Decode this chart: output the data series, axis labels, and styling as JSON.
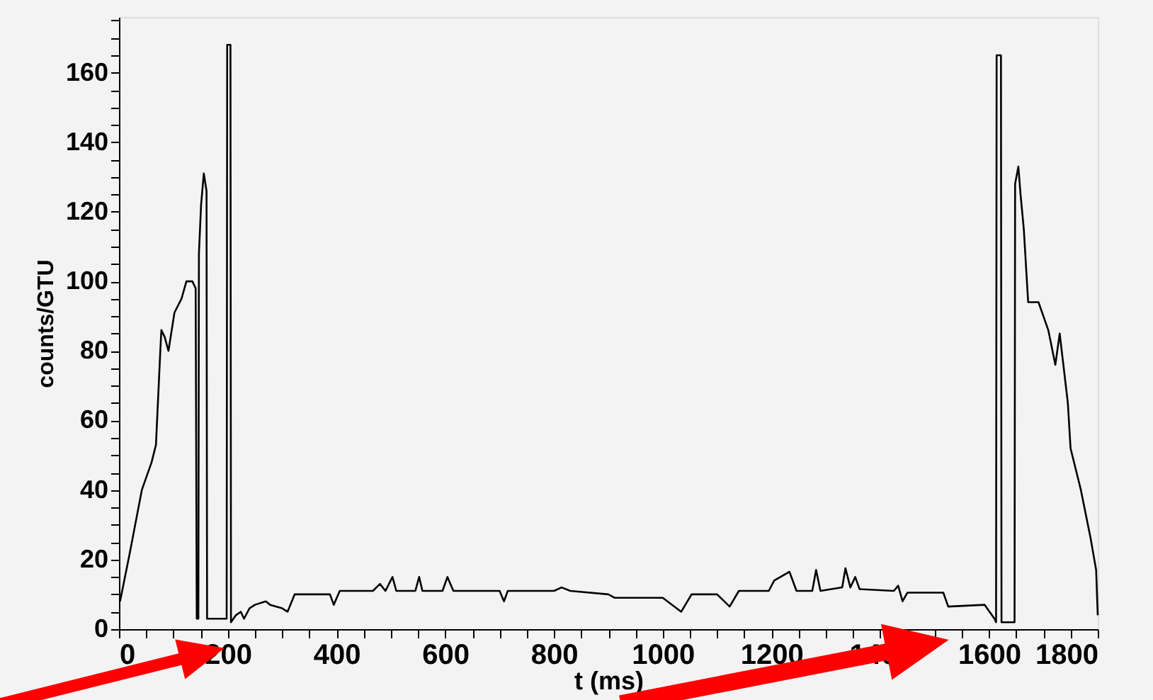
{
  "chart_data": {
    "type": "line",
    "xlabel": "t (ms)",
    "ylabel": "counts/GTU",
    "x": [
      2,
      20,
      42,
      60,
      68,
      76,
      78,
      84,
      91,
      102,
      115,
      124,
      135,
      141,
      143,
      146,
      147,
      151,
      156,
      161,
      162,
      198,
      199,
      205,
      206,
      215,
      224,
      230,
      240,
      250,
      270,
      278,
      300,
      310,
      323,
      388,
      395,
      406,
      467,
      480,
      490,
      503,
      510,
      545,
      552,
      558,
      595,
      604,
      615,
      700,
      708,
      715,
      800,
      814,
      830,
      900,
      912,
      1000,
      1034,
      1053,
      1100,
      1123,
      1140,
      1195,
      1205,
      1233,
      1246,
      1275,
      1282,
      1290,
      1330,
      1336,
      1345,
      1354,
      1362,
      1425,
      1433,
      1441,
      1450,
      1516,
      1525,
      1592,
      1610,
      1613,
      1614,
      1622,
      1623,
      1647,
      1648,
      1654,
      1658,
      1664,
      1672,
      1691,
      1709,
      1722,
      1730,
      1745,
      1750,
      1769,
      1787,
      1797,
      1800
    ],
    "series": [
      {
        "color": "#000000",
        "values": [
          8,
          22,
          40,
          48,
          53,
          80,
          86,
          84,
          80,
          91,
          95,
          100,
          100,
          98,
          3,
          3,
          108,
          122,
          131,
          126,
          3,
          3,
          168,
          168,
          2,
          4,
          5,
          3,
          6,
          7,
          8,
          7,
          6,
          5,
          10,
          10,
          7,
          11,
          11,
          13,
          11,
          15,
          11,
          11,
          15,
          11,
          11,
          15,
          11,
          11,
          8,
          11,
          11,
          12,
          11,
          10,
          9,
          9,
          5,
          10,
          10,
          6.5,
          11,
          11,
          14,
          16.5,
          11,
          11,
          17,
          11,
          12,
          17.5,
          12,
          15,
          11.5,
          11,
          12.5,
          8,
          10.5,
          10.5,
          6.5,
          7,
          3,
          2,
          165,
          165,
          2,
          2,
          128,
          133,
          125,
          115,
          94,
          94,
          86,
          76,
          85,
          65,
          52,
          40,
          26,
          17,
          4
        ]
      }
    ],
    "xlim": [
      0,
      1800
    ],
    "ylim": [
      0,
      176
    ],
    "xticks": [
      0,
      {
        "value": 50,
        "label": null
      },
      {
        "value": 100,
        "label": null
      },
      {
        "value": 150,
        "label": null
      },
      200,
      {
        "value": 250,
        "label": null
      },
      {
        "value": 300,
        "label": null
      },
      {
        "value": 350,
        "label": null
      },
      400,
      {
        "value": 450,
        "label": null
      },
      {
        "value": 500,
        "label": null
      },
      {
        "value": 550,
        "label": null
      },
      600,
      {
        "value": 650,
        "label": null
      },
      {
        "value": 700,
        "label": null
      },
      {
        "value": 750,
        "label": null
      },
      800,
      {
        "value": 850,
        "label": null
      },
      {
        "value": 900,
        "label": null
      },
      {
        "value": 950,
        "label": null
      },
      1000,
      {
        "value": 1050,
        "label": null
      },
      {
        "value": 1100,
        "label": null
      },
      {
        "value": 1150,
        "label": null
      },
      1200,
      {
        "value": 1250,
        "label": null
      },
      {
        "value": 1300,
        "label": null
      },
      {
        "value": 1350,
        "label": null
      },
      1400,
      {
        "value": 1450,
        "label": null
      },
      {
        "value": 1500,
        "label": null
      },
      {
        "value": 1550,
        "label": null
      },
      1600,
      {
        "value": 1650,
        "label": null
      },
      {
        "value": 1700,
        "label": null
      },
      {
        "value": 1750,
        "label": null
      },
      1800
    ],
    "yticks": [
      0,
      {
        "value": 5,
        "label": null
      },
      {
        "value": 10,
        "label": null
      },
      {
        "value": 15,
        "label": null
      },
      20,
      {
        "value": 25,
        "label": null
      },
      {
        "value": 30,
        "label": null
      },
      {
        "value": 35,
        "label": null
      },
      40,
      {
        "value": 45,
        "label": null
      },
      {
        "value": 50,
        "label": null
      },
      {
        "value": 55,
        "label": null
      },
      60,
      {
        "value": 65,
        "label": null
      },
      {
        "value": 70,
        "label": null
      },
      {
        "value": 75,
        "label": null
      },
      80,
      {
        "value": 85,
        "label": null
      },
      {
        "value": 90,
        "label": null
      },
      {
        "value": 95,
        "label": null
      },
      100,
      {
        "value": 105,
        "label": null
      },
      {
        "value": 110,
        "label": null
      },
      {
        "value": 115,
        "label": null
      },
      120,
      {
        "value": 125,
        "label": null
      },
      {
        "value": 130,
        "label": null
      },
      {
        "value": 135,
        "label": null
      },
      140,
      {
        "value": 145,
        "label": null
      },
      {
        "value": 150,
        "label": null
      },
      {
        "value": 155,
        "label": null
      },
      160,
      {
        "value": 165,
        "label": null
      },
      {
        "value": 170,
        "label": null
      },
      {
        "value": 175,
        "label": null
      }
    ],
    "grid": false,
    "marker": "none",
    "line_style": "solid"
  }
}
